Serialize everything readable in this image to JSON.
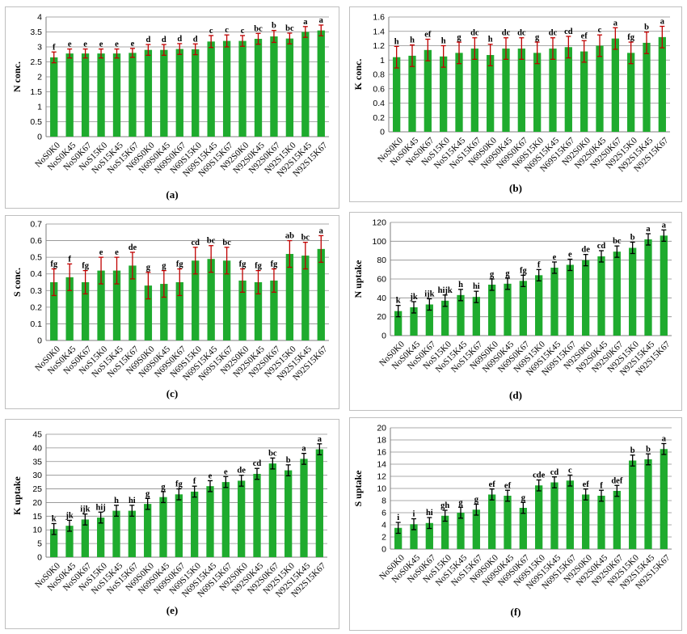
{
  "chart_data": [
    {
      "panel": "(a)",
      "type": "bar",
      "ylabel": "N conc.",
      "ylim": [
        0,
        4
      ],
      "yticks": [
        "0",
        "0.5",
        "1",
        "1.5",
        "2",
        "2.5",
        "3",
        "3.5",
        "4"
      ],
      "grid": true,
      "color": "#1fab2e",
      "err_color": "#c00000",
      "categories": [
        "NoS0K0",
        "NoS0K45",
        "NoS0K67",
        "NoS15K0",
        "NoS15K45",
        "NoS15K67",
        "N69S0K0",
        "N69S0K45",
        "N69S0K67",
        "N69S15K0",
        "N69S15K45",
        "N69S15K67",
        "N92S0K0",
        "N92S0K45",
        "N92S0K67",
        "N92S15K0",
        "N92S15K45",
        "N92S15K67"
      ],
      "values": [
        2.65,
        2.78,
        2.78,
        2.78,
        2.78,
        2.8,
        2.9,
        2.9,
        2.93,
        2.92,
        3.18,
        3.2,
        3.2,
        3.27,
        3.35,
        3.28,
        3.5,
        3.55
      ],
      "errors": [
        0.18,
        0.15,
        0.15,
        0.15,
        0.15,
        0.15,
        0.18,
        0.18,
        0.18,
        0.18,
        0.2,
        0.2,
        0.18,
        0.18,
        0.2,
        0.18,
        0.18,
        0.18
      ],
      "labels": [
        "f",
        "e",
        "e",
        "e",
        "e",
        "e",
        "d",
        "d",
        "d",
        "d",
        "c",
        "c",
        "c",
        "bc",
        "b",
        "bc",
        "a",
        "a"
      ]
    },
    {
      "panel": "(b)",
      "type": "bar",
      "ylabel": "K conc.",
      "ylim": [
        0,
        1.6
      ],
      "yticks": [
        "0",
        "0.2",
        "0.4",
        "0.6",
        "0.8",
        "1",
        "1.2",
        "1.4",
        "1.6"
      ],
      "grid": true,
      "color": "#1fab2e",
      "err_color": "#c00000",
      "categories": [
        "NoS0K0",
        "NoS0K45",
        "NoS0K67",
        "NoS15K0",
        "NoS15K45",
        "NoS15K67",
        "N69S0K0",
        "N69S0K45",
        "N69S0K67",
        "N69S15K0",
        "N69S15K45",
        "N69S15K67",
        "N92S0K0",
        "N92S0K45",
        "N92S0K67",
        "N92S15K0",
        "N92S15K45",
        "N92S15K67"
      ],
      "values": [
        1.04,
        1.06,
        1.14,
        1.05,
        1.1,
        1.16,
        1.07,
        1.16,
        1.16,
        1.1,
        1.16,
        1.18,
        1.12,
        1.2,
        1.3,
        1.1,
        1.24,
        1.32
      ],
      "errors": [
        0.15,
        0.15,
        0.15,
        0.15,
        0.15,
        0.15,
        0.15,
        0.15,
        0.15,
        0.15,
        0.15,
        0.15,
        0.15,
        0.15,
        0.15,
        0.15,
        0.15,
        0.15
      ],
      "labels": [
        "h",
        "h",
        "ef",
        "h",
        "g",
        "dc",
        "h",
        "dc",
        "dc",
        "g",
        "dc",
        "cd",
        "ef",
        "c",
        "a",
        "fg",
        "b",
        "a"
      ]
    },
    {
      "panel": "(c)",
      "type": "bar",
      "ylabel": "S conc.",
      "ylim": [
        0,
        0.7
      ],
      "yticks": [
        "0",
        "0.1",
        "0.2",
        "0.3",
        "0.4",
        "0.5",
        "0.6",
        "0.7"
      ],
      "grid": true,
      "color": "#1fab2e",
      "err_color": "#c00000",
      "categories": [
        "NoS0K0",
        "NoS0K45",
        "NoS0K67",
        "NoS15K0",
        "NoS15K45",
        "NoS15K67",
        "N69S0K0",
        "N69S0K45",
        "N69S0K67",
        "N69S15K0",
        "N69S15K45",
        "N69S15K67",
        "N92S0K0",
        "N92S0K45",
        "N92S0K67",
        "N92S15K0",
        "N92S15K45",
        "N92S15K67"
      ],
      "values": [
        0.35,
        0.38,
        0.35,
        0.42,
        0.42,
        0.45,
        0.33,
        0.34,
        0.35,
        0.48,
        0.49,
        0.48,
        0.36,
        0.35,
        0.36,
        0.52,
        0.51,
        0.55
      ],
      "errors": [
        0.08,
        0.08,
        0.07,
        0.08,
        0.08,
        0.08,
        0.08,
        0.08,
        0.08,
        0.08,
        0.08,
        0.08,
        0.07,
        0.07,
        0.07,
        0.08,
        0.08,
        0.08
      ],
      "labels": [
        "fg",
        "f",
        "fg",
        "e",
        "e",
        "de",
        "g",
        "g",
        "fg",
        "cd",
        "bc",
        "bc",
        "fg",
        "fg",
        "fg",
        "ab",
        "bc",
        "a"
      ]
    },
    {
      "panel": "(d)",
      "type": "bar",
      "ylabel": "N uptake",
      "ylim": [
        0,
        120
      ],
      "yticks": [
        "0",
        "20",
        "40",
        "60",
        "80",
        "100",
        "120"
      ],
      "grid": true,
      "color": "#1fab2e",
      "err_color": "#000000",
      "categories": [
        "NoS0K0",
        "NoS0K45",
        "NoS0K67",
        "NoS15K0",
        "NoS15K45",
        "NoS15K67",
        "N69S0K0",
        "N69S0K45",
        "N69S0K67",
        "N69S15K0",
        "N69S15K45",
        "N69S15K67",
        "N92S0K0",
        "N92S0K45",
        "N92S0K67",
        "N92S15K0",
        "N92S15K45",
        "N92S15K67"
      ],
      "values": [
        26,
        30,
        33,
        37,
        43,
        41,
        54,
        55,
        58,
        64,
        72,
        75,
        80,
        84,
        89,
        93,
        102,
        106
      ],
      "errors": [
        6,
        6,
        6,
        6,
        6,
        6,
        6,
        6,
        6,
        6,
        6,
        6,
        6,
        6,
        6,
        6,
        6,
        6
      ],
      "labels": [
        "k",
        "jk",
        "ijk",
        "hijk",
        "h",
        "hi",
        "g",
        "g",
        "fg",
        "f",
        "e",
        "e",
        "de",
        "cd",
        "bc",
        "b",
        "a",
        "a"
      ]
    },
    {
      "panel": "(e)",
      "type": "bar",
      "ylabel": "K uptake",
      "ylim": [
        0,
        45
      ],
      "yticks": [
        "0",
        "5",
        "10",
        "15",
        "20",
        "25",
        "30",
        "35",
        "40",
        "45"
      ],
      "grid": true,
      "color": "#1fab2e",
      "err_color": "#000000",
      "categories": [
        "NoS0K0",
        "NoS0K45",
        "NoS0K67",
        "NoS15K0",
        "NoS15K45",
        "NoS15K67",
        "N69S0K0",
        "N69S0K45",
        "N69S0K67",
        "N69S15K0",
        "N69S15K45",
        "N69S15K67",
        "N92S0K0",
        "N92S0K45",
        "N92S0K67",
        "N92S15K0",
        "N92S15K45",
        "N92S15K67"
      ],
      "values": [
        10.3,
        11.5,
        13.8,
        14.5,
        17,
        17,
        19.5,
        22,
        23,
        24,
        26,
        27.5,
        28,
        30.5,
        34.3,
        31.8,
        36,
        39.5
      ],
      "errors": [
        2,
        2,
        2,
        2,
        2,
        2,
        2,
        2,
        2,
        2,
        2,
        2,
        2,
        2,
        2,
        2,
        2,
        2
      ],
      "labels": [
        "k",
        "jk",
        "ijk",
        "hij",
        "h",
        "hi",
        "g",
        "g",
        "fg",
        "f",
        "e",
        "e",
        "de",
        "cd",
        "bc",
        "b",
        "a",
        "a"
      ]
    },
    {
      "panel": "(f)",
      "type": "bar",
      "ylabel": "S uptake",
      "ylim": [
        0,
        20
      ],
      "yticks": [
        "0",
        "2",
        "4",
        "6",
        "8",
        "10",
        "12",
        "14",
        "16",
        "18",
        "20"
      ],
      "grid": true,
      "color": "#1fab2e",
      "err_color": "#000000",
      "categories": [
        "NoS0K0",
        "NoS0K45",
        "NoS0K67",
        "NoS15K0",
        "NoS15K45",
        "NoS15K67",
        "N69S0K0",
        "N69S0K45",
        "N69S0K67",
        "N69S15K0",
        "N69S15K45",
        "N69S15K67",
        "N92S0K0",
        "N92S0K45",
        "N92S0K67",
        "N92S15K0",
        "N92S15K45",
        "N92S15K67"
      ],
      "values": [
        3.5,
        4.1,
        4.3,
        5.5,
        6,
        6.5,
        9,
        8.8,
        6.8,
        10.5,
        11,
        11.3,
        9,
        8.8,
        9.6,
        14.6,
        14.8,
        16.5
      ],
      "errors": [
        0.9,
        0.9,
        0.9,
        0.9,
        0.9,
        0.9,
        0.9,
        0.9,
        0.9,
        0.9,
        0.9,
        0.9,
        0.9,
        0.9,
        0.9,
        0.9,
        0.9,
        0.9
      ],
      "labels": [
        "i",
        "i",
        "hi",
        "gh",
        "g",
        "g",
        "ef",
        "ef",
        "g",
        "cde",
        "cd",
        "c",
        "ef",
        "f",
        "def",
        "b",
        "b",
        "a"
      ]
    }
  ]
}
